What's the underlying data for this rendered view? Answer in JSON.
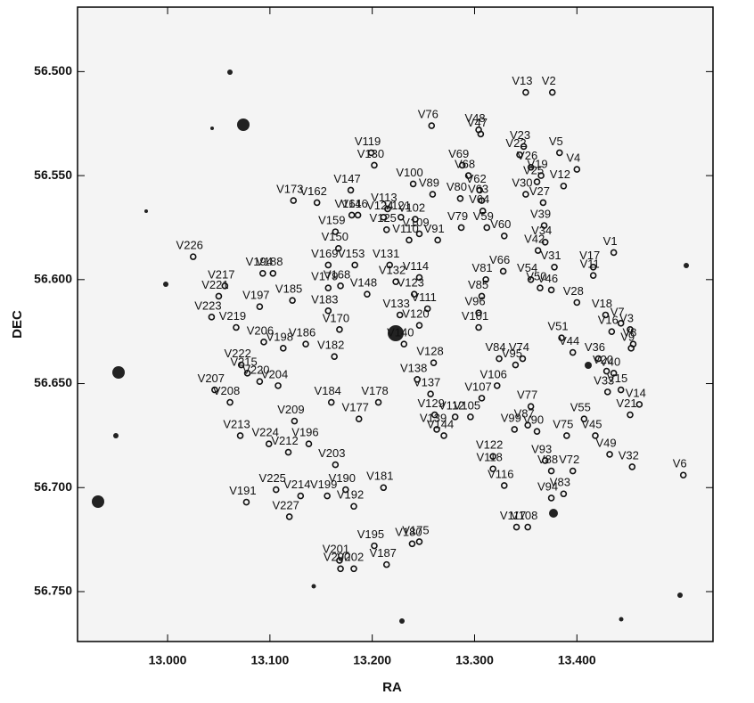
{
  "chart_data": {
    "type": "scatter",
    "xlabel": "RA",
    "ylabel": "DEC",
    "xlim": [
      12.912,
      13.533
    ],
    "ylim": [
      56.469,
      56.774
    ],
    "y_inverted": true,
    "xticks": [
      {
        "value": 13.0,
        "label": "13.000"
      },
      {
        "value": 13.1,
        "label": "13.100"
      },
      {
        "value": 13.2,
        "label": "13.200"
      },
      {
        "value": 13.3,
        "label": "13.300"
      },
      {
        "value": 13.4,
        "label": "13.400"
      }
    ],
    "yticks": [
      {
        "value": 56.5,
        "label": "56.500"
      },
      {
        "value": 56.55,
        "label": "56.550"
      },
      {
        "value": 56.6,
        "label": "56.600"
      },
      {
        "value": 56.65,
        "label": "56.650"
      },
      {
        "value": 56.7,
        "label": "56.700"
      },
      {
        "value": 56.75,
        "label": "56.750"
      }
    ],
    "color": "#111111",
    "point_labels": [
      "V13",
      "V2",
      "V76",
      "V48",
      "V47",
      "V23",
      "V22",
      "V5",
      "V4",
      "V119",
      "V130",
      "V100",
      "V69",
      "V68",
      "V26",
      "V19",
      "V12",
      "V25",
      "V173",
      "V162",
      "V147",
      "V89",
      "V80",
      "V62",
      "V63",
      "V30",
      "V27",
      "V113",
      "V161",
      "V146",
      "V124",
      "V121",
      "V102",
      "V64",
      "V39",
      "V159",
      "V125",
      "V109",
      "V79",
      "V59",
      "V60",
      "V150",
      "V110",
      "V91",
      "V34",
      "V42",
      "V1",
      "V226",
      "V194",
      "V188",
      "V169",
      "V153",
      "V131",
      "V66",
      "V31",
      "V17",
      "V11",
      "V217",
      "V221",
      "V114",
      "V132",
      "V81",
      "V54",
      "V50",
      "V197",
      "V185",
      "V179",
      "V168",
      "V148",
      "V123",
      "V85",
      "V46",
      "V28",
      "V223",
      "V219",
      "V183",
      "V133",
      "V111",
      "V96",
      "V18",
      "V7",
      "V3",
      "V16",
      "V206",
      "V170",
      "V120",
      "V101",
      "V51",
      "V8",
      "V186",
      "V198",
      "V140",
      "V44",
      "V36",
      "V9",
      "V222",
      "V182",
      "V128",
      "V84",
      "V74",
      "V215",
      "V220",
      "V204",
      "V138",
      "V137",
      "V95",
      "V106",
      "V40",
      "V20",
      "V207",
      "V184",
      "V178",
      "V33",
      "V15",
      "V14",
      "V208",
      "V77",
      "V209",
      "V177",
      "V107",
      "V129",
      "V112",
      "V105",
      "V87",
      "V55",
      "V21",
      "V213",
      "V224",
      "V139",
      "V144",
      "V90",
      "V99",
      "V75",
      "V45",
      "V212",
      "V196",
      "V122",
      "V32",
      "V6",
      "V49",
      "V93",
      "V118",
      "V88",
      "V72",
      "V116",
      "V203",
      "V181",
      "V191",
      "V225",
      "V214",
      "V227",
      "V199",
      "V190",
      "V192",
      "V94",
      "V83",
      "V117",
      "V108",
      "V195",
      "V180",
      "V175",
      "V201",
      "V187",
      "V200",
      "V202"
    ],
    "x": [
      13.35,
      13.376,
      13.258,
      13.304,
      13.306,
      13.348,
      13.344,
      13.383,
      13.4,
      13.199,
      13.202,
      13.24,
      13.288,
      13.294,
      13.355,
      13.365,
      13.387,
      13.361,
      13.123,
      13.146,
      13.179,
      13.259,
      13.286,
      13.305,
      13.307,
      13.35,
      13.367,
      13.215,
      13.18,
      13.186,
      13.211,
      13.228,
      13.242,
      13.308,
      13.368,
      13.164,
      13.214,
      13.246,
      13.287,
      13.312,
      13.329,
      13.167,
      13.236,
      13.264,
      13.369,
      13.362,
      13.436,
      13.025,
      13.093,
      13.103,
      13.157,
      13.183,
      13.217,
      13.328,
      13.378,
      13.416,
      13.416,
      13.056,
      13.05,
      13.246,
      13.223,
      13.311,
      13.355,
      13.364,
      13.09,
      13.122,
      13.157,
      13.169,
      13.195,
      13.241,
      13.307,
      13.375,
      13.4,
      13.043,
      13.067,
      13.157,
      13.227,
      13.254,
      13.304,
      13.428,
      13.443,
      13.452,
      13.434,
      13.094,
      13.168,
      13.246,
      13.304,
      13.385,
      13.455,
      13.135,
      13.113,
      13.231,
      13.396,
      13.421,
      13.453,
      13.072,
      13.163,
      13.26,
      13.324,
      13.347,
      13.078,
      13.09,
      13.108,
      13.244,
      13.257,
      13.34,
      13.322,
      13.436,
      13.429,
      13.046,
      13.16,
      13.206,
      13.43,
      13.443,
      13.461,
      13.061,
      13.355,
      13.124,
      13.187,
      13.307,
      13.261,
      13.281,
      13.296,
      13.352,
      13.407,
      13.452,
      13.071,
      13.099,
      13.263,
      13.27,
      13.361,
      13.339,
      13.39,
      13.418,
      13.118,
      13.138,
      13.318,
      13.454,
      13.504,
      13.432,
      13.369,
      13.318,
      13.375,
      13.396,
      13.329,
      13.164,
      13.211,
      13.077,
      13.106,
      13.13,
      13.119,
      13.156,
      13.174,
      13.182,
      13.375,
      13.387,
      13.341,
      13.352,
      13.202,
      13.239,
      13.246,
      13.168,
      13.214,
      13.169,
      13.182
    ],
    "y": [
      56.51,
      56.51,
      56.526,
      56.528,
      56.53,
      56.536,
      56.54,
      56.539,
      56.547,
      56.539,
      56.545,
      56.554,
      56.545,
      56.55,
      56.546,
      56.55,
      56.555,
      56.553,
      56.562,
      56.563,
      56.557,
      56.559,
      56.561,
      56.557,
      56.562,
      56.559,
      56.563,
      56.566,
      56.569,
      56.569,
      56.57,
      56.57,
      56.571,
      56.567,
      56.574,
      56.577,
      56.576,
      56.578,
      56.575,
      56.575,
      56.579,
      56.585,
      56.581,
      56.581,
      56.582,
      56.586,
      56.587,
      56.589,
      56.597,
      56.597,
      56.593,
      56.593,
      56.593,
      56.596,
      56.594,
      56.594,
      56.598,
      56.603,
      56.608,
      56.599,
      56.601,
      56.6,
      56.6,
      56.604,
      56.613,
      56.61,
      56.604,
      56.603,
      56.607,
      56.607,
      56.608,
      56.605,
      56.611,
      56.618,
      56.623,
      56.615,
      56.617,
      56.614,
      56.616,
      56.617,
      56.621,
      56.624,
      56.625,
      56.63,
      56.624,
      56.622,
      56.623,
      56.628,
      56.631,
      56.631,
      56.633,
      56.631,
      56.635,
      56.638,
      56.633,
      56.641,
      56.637,
      56.64,
      56.638,
      56.638,
      56.645,
      56.649,
      56.651,
      56.648,
      56.655,
      56.641,
      56.651,
      56.645,
      56.644,
      56.653,
      56.659,
      56.659,
      56.654,
      56.653,
      56.66,
      56.659,
      56.661,
      56.668,
      56.667,
      56.657,
      56.665,
      56.666,
      56.666,
      56.67,
      56.667,
      56.665,
      56.675,
      56.679,
      56.672,
      56.675,
      56.673,
      56.672,
      56.675,
      56.675,
      56.683,
      56.679,
      56.685,
      56.69,
      56.694,
      56.684,
      56.687,
      56.691,
      56.692,
      56.692,
      56.699,
      56.689,
      56.7,
      56.707,
      56.701,
      56.704,
      56.714,
      56.704,
      56.701,
      56.709,
      56.705,
      56.703,
      56.719,
      56.719,
      56.728,
      56.727,
      56.726,
      56.735,
      56.737,
      56.739,
      56.739
    ]
  }
}
